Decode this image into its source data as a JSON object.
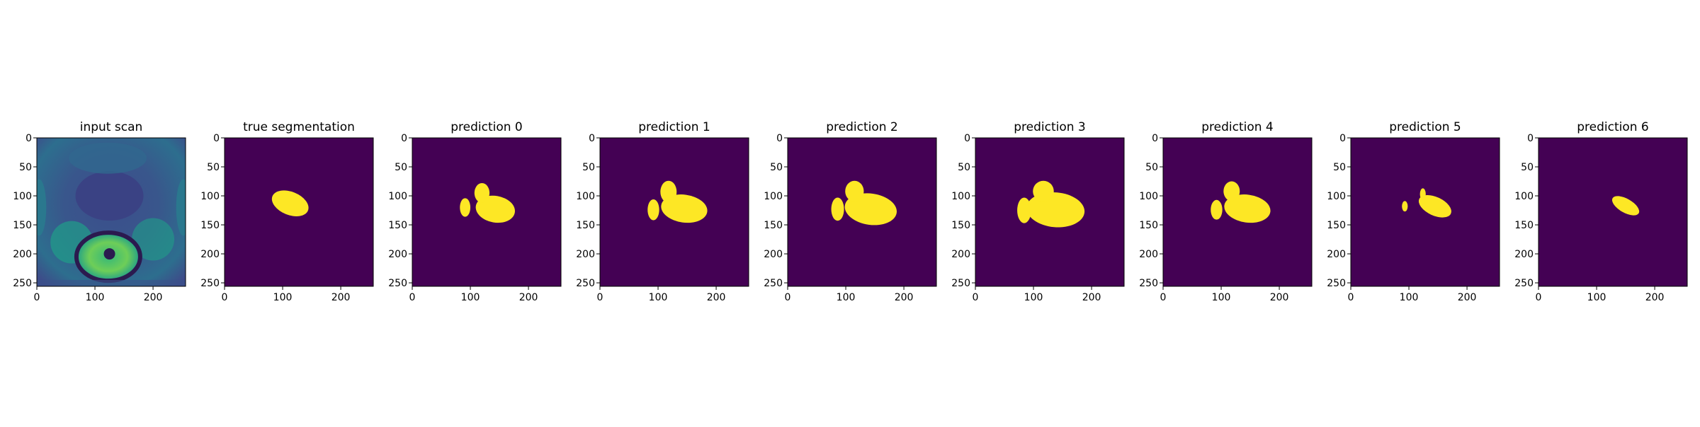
{
  "figure": {
    "background": "#ffffff",
    "colormap": "viridis",
    "colors": {
      "background_class": "#440154",
      "foreground_class": "#fde725"
    }
  },
  "chart_data": [
    {
      "type": "heatmap",
      "title": "input scan",
      "content": "grayscale MRI slice rendered with viridis colormap",
      "xlim": [
        0,
        256
      ],
      "ylim": [
        256,
        0
      ],
      "xticks": [
        0,
        100,
        200
      ],
      "yticks": [
        0,
        50,
        100,
        150,
        200,
        250
      ],
      "xticklabels": [
        "0",
        "100",
        "200"
      ],
      "yticklabels": [
        "0",
        "50",
        "100",
        "150",
        "200",
        "250"
      ]
    },
    {
      "type": "heatmap",
      "title": "true segmentation",
      "content": "binary mask",
      "mask_blobs": [
        {
          "cx": 113,
          "cy": 113,
          "rx": 33,
          "ry": 20,
          "rotation_deg": 22
        }
      ],
      "xlim": [
        0,
        256
      ],
      "ylim": [
        256,
        0
      ],
      "xticks": [
        0,
        100,
        200
      ],
      "yticks": [
        0,
        50,
        100,
        150,
        200,
        250
      ],
      "xticklabels": [
        "0",
        "100",
        "200"
      ],
      "yticklabels": [
        "0",
        "50",
        "100",
        "150",
        "200",
        "250"
      ]
    },
    {
      "type": "heatmap",
      "title": "prediction 0",
      "content": "binary mask",
      "mask_blobs": [
        {
          "cx": 143,
          "cy": 123,
          "rx": 34,
          "ry": 23,
          "rotation_deg": 10
        },
        {
          "cx": 120,
          "cy": 95,
          "rx": 13,
          "ry": 17,
          "rotation_deg": 0
        },
        {
          "cx": 91,
          "cy": 120,
          "rx": 9,
          "ry": 16,
          "rotation_deg": 0
        }
      ],
      "xlim": [
        0,
        256
      ],
      "ylim": [
        256,
        0
      ],
      "xticks": [
        0,
        100,
        200
      ],
      "yticks": [
        0,
        50,
        100,
        150,
        200,
        250
      ],
      "xticklabels": [
        "0",
        "100",
        "200"
      ],
      "yticklabels": [
        "0",
        "50",
        "100",
        "150",
        "200",
        "250"
      ]
    },
    {
      "type": "heatmap",
      "title": "prediction 1",
      "content": "binary mask",
      "mask_blobs": [
        {
          "cx": 145,
          "cy": 122,
          "rx": 40,
          "ry": 24,
          "rotation_deg": 8
        },
        {
          "cx": 118,
          "cy": 93,
          "rx": 14,
          "ry": 19,
          "rotation_deg": 0
        },
        {
          "cx": 92,
          "cy": 124,
          "rx": 10,
          "ry": 18,
          "rotation_deg": 0
        }
      ],
      "xlim": [
        0,
        256
      ],
      "ylim": [
        256,
        0
      ],
      "xticks": [
        0,
        100,
        200
      ],
      "yticks": [
        0,
        50,
        100,
        150,
        200,
        250
      ],
      "xticklabels": [
        "0",
        "100",
        "200"
      ],
      "yticklabels": [
        "0",
        "50",
        "100",
        "150",
        "200",
        "250"
      ]
    },
    {
      "type": "heatmap",
      "title": "prediction 2",
      "content": "binary mask",
      "mask_blobs": [
        {
          "cx": 143,
          "cy": 123,
          "rx": 45,
          "ry": 27,
          "rotation_deg": 8
        },
        {
          "cx": 115,
          "cy": 92,
          "rx": 16,
          "ry": 18,
          "rotation_deg": 0
        },
        {
          "cx": 86,
          "cy": 123,
          "rx": 11,
          "ry": 20,
          "rotation_deg": 0
        }
      ],
      "xlim": [
        0,
        256
      ],
      "ylim": [
        256,
        0
      ],
      "xticks": [
        0,
        100,
        200
      ],
      "yticks": [
        0,
        50,
        100,
        150,
        200,
        250
      ],
      "xticklabels": [
        "0",
        "100",
        "200"
      ],
      "yticklabels": [
        "0",
        "50",
        "100",
        "150",
        "200",
        "250"
      ]
    },
    {
      "type": "heatmap",
      "title": "prediction 3",
      "content": "binary mask",
      "mask_blobs": [
        {
          "cx": 138,
          "cy": 124,
          "rx": 50,
          "ry": 30,
          "rotation_deg": 5
        },
        {
          "cx": 117,
          "cy": 92,
          "rx": 18,
          "ry": 18,
          "rotation_deg": 0
        },
        {
          "cx": 84,
          "cy": 125,
          "rx": 12,
          "ry": 22,
          "rotation_deg": 0
        }
      ],
      "xlim": [
        0,
        256
      ],
      "ylim": [
        256,
        0
      ],
      "xticks": [
        0,
        100,
        200
      ],
      "yticks": [
        0,
        50,
        100,
        150,
        200,
        250
      ],
      "xticklabels": [
        "0",
        "100",
        "200"
      ],
      "yticklabels": [
        "0",
        "50",
        "100",
        "150",
        "200",
        "250"
      ]
    },
    {
      "type": "heatmap",
      "title": "prediction 4",
      "content": "binary mask",
      "mask_blobs": [
        {
          "cx": 145,
          "cy": 122,
          "rx": 40,
          "ry": 24,
          "rotation_deg": 8
        },
        {
          "cx": 118,
          "cy": 92,
          "rx": 14,
          "ry": 17,
          "rotation_deg": 0
        },
        {
          "cx": 92,
          "cy": 124,
          "rx": 10,
          "ry": 17,
          "rotation_deg": 0
        }
      ],
      "xlim": [
        0,
        256
      ],
      "ylim": [
        256,
        0
      ],
      "xticks": [
        0,
        100,
        200
      ],
      "yticks": [
        0,
        50,
        100,
        150,
        200,
        250
      ],
      "xticklabels": [
        "0",
        "100",
        "200"
      ],
      "yticklabels": [
        "0",
        "50",
        "100",
        "150",
        "200",
        "250"
      ]
    },
    {
      "type": "heatmap",
      "title": "prediction 5",
      "content": "binary mask",
      "mask_blobs": [
        {
          "cx": 145,
          "cy": 118,
          "rx": 30,
          "ry": 16,
          "rotation_deg": 25
        },
        {
          "cx": 124,
          "cy": 97,
          "rx": 5,
          "ry": 10,
          "rotation_deg": 0
        },
        {
          "cx": 93,
          "cy": 118,
          "rx": 5,
          "ry": 9,
          "rotation_deg": 0
        }
      ],
      "xlim": [
        0,
        256
      ],
      "ylim": [
        256,
        0
      ],
      "xticks": [
        0,
        100,
        200
      ],
      "yticks": [
        0,
        50,
        100,
        150,
        200,
        250
      ],
      "xticklabels": [
        "0",
        "100",
        "200"
      ],
      "yticklabels": [
        "0",
        "50",
        "100",
        "150",
        "200",
        "250"
      ]
    },
    {
      "type": "heatmap",
      "title": "prediction 6",
      "content": "binary mask",
      "mask_blobs": [
        {
          "cx": 150,
          "cy": 117,
          "rx": 26,
          "ry": 12,
          "rotation_deg": 30
        }
      ],
      "xlim": [
        0,
        256
      ],
      "ylim": [
        256,
        0
      ],
      "xticks": [
        0,
        100,
        200
      ],
      "yticks": [
        0,
        50,
        100,
        150,
        200,
        250
      ],
      "xticklabels": [
        "0",
        "100",
        "200"
      ],
      "yticklabels": [
        "0",
        "50",
        "100",
        "150",
        "200",
        "250"
      ]
    }
  ]
}
